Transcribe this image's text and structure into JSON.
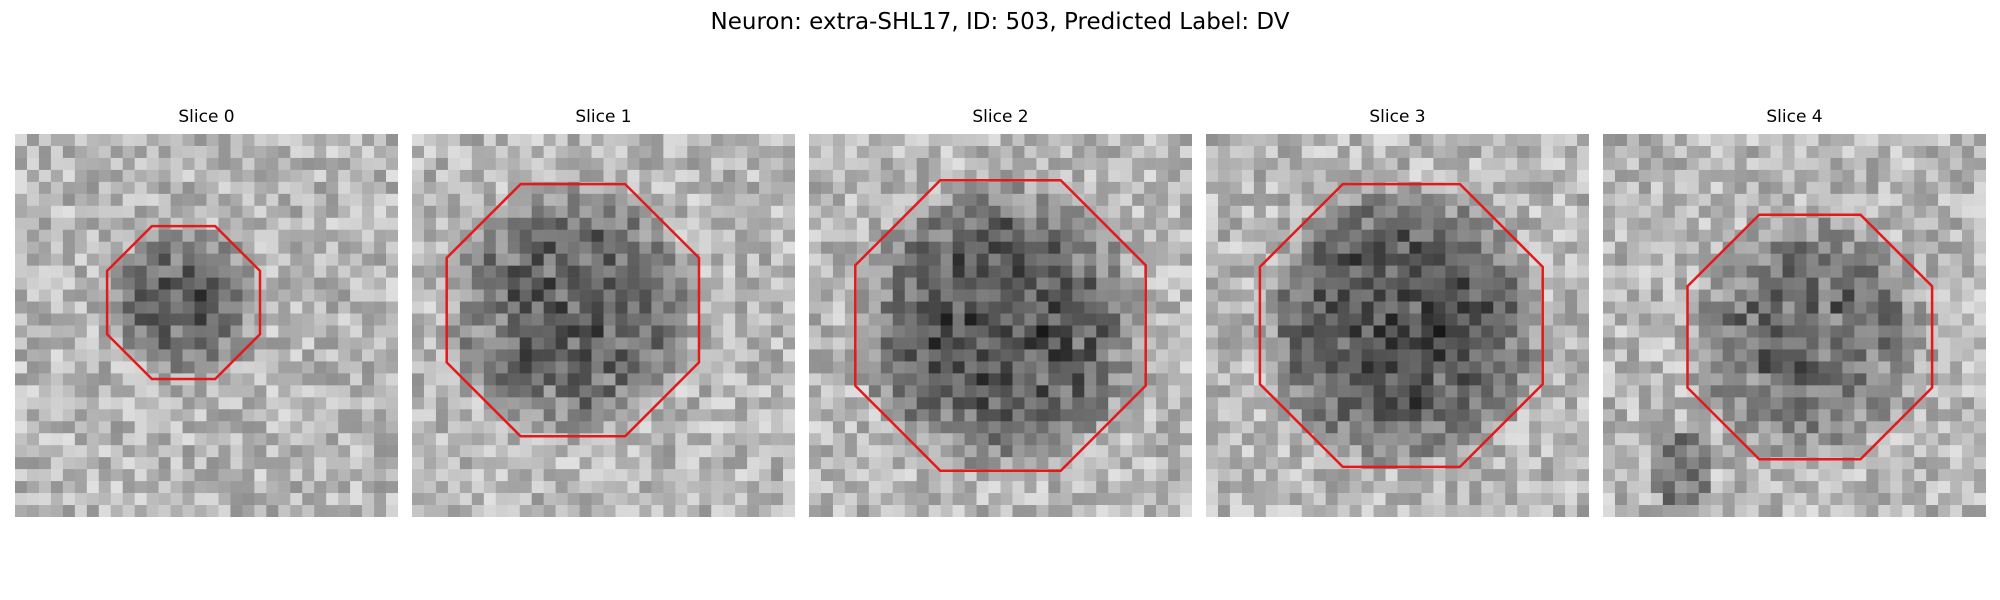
{
  "figure": {
    "title": "Neuron: extra-SHL17, ID: 503, Predicted Label: DV",
    "outline_color": "#e31a1c",
    "panels": [
      {
        "title": "Slice 0",
        "seed": 11,
        "blob_radius": 0.2,
        "blob_darkness": 0.36
      },
      {
        "title": "Slice 1",
        "seed": 23,
        "blob_radius": 0.33,
        "blob_darkness": 0.34
      },
      {
        "title": "Slice 2",
        "seed": 37,
        "blob_radius": 0.38,
        "blob_darkness": 0.4
      },
      {
        "title": "Slice 3",
        "seed": 53,
        "blob_radius": 0.37,
        "blob_darkness": 0.42
      },
      {
        "title": "Slice 4",
        "seed": 71,
        "blob_radius": 0.32,
        "blob_darkness": 0.3
      }
    ]
  }
}
